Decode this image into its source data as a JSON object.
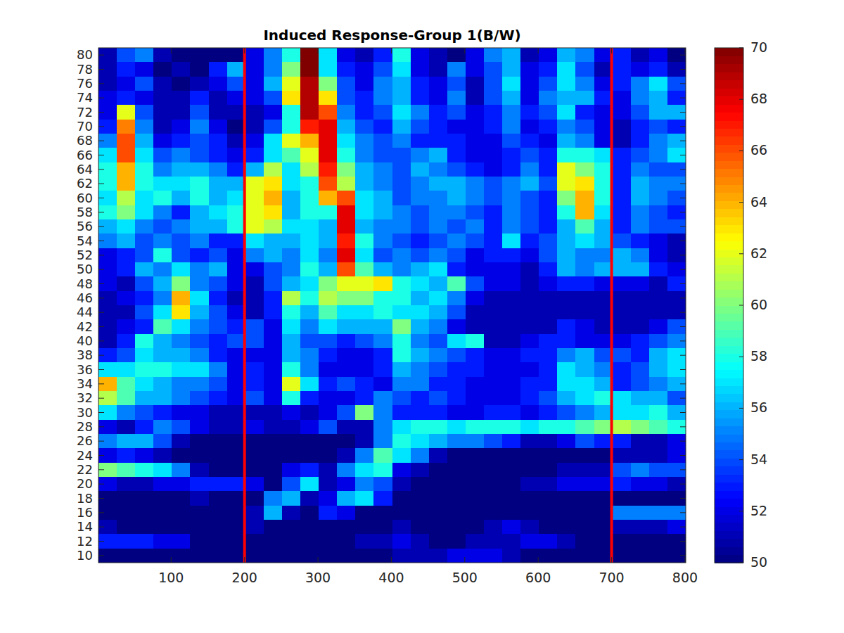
{
  "chart_data": {
    "type": "heatmap",
    "title": "Induced Response-Group 1(B/W)",
    "x_bins": [
      1,
      26,
      51,
      76,
      101,
      126,
      151,
      176,
      201,
      226,
      251,
      276,
      301,
      326,
      351,
      376,
      401,
      426,
      451,
      476,
      501,
      526,
      551,
      576,
      601,
      626,
      651,
      676,
      701,
      726,
      751,
      776,
      801
    ],
    "y_bins": [
      81,
      79,
      77,
      75,
      73,
      71,
      69,
      67,
      65,
      63,
      61,
      59,
      57,
      55,
      53,
      51,
      49,
      47,
      45,
      43,
      41,
      39,
      37,
      35,
      33,
      31,
      29,
      27,
      25,
      23,
      21,
      19,
      17,
      15,
      13,
      11,
      9
    ],
    "values": [
      [
        51,
        54,
        55,
        51,
        50,
        50,
        50,
        50,
        52,
        55,
        58,
        70,
        57,
        52,
        51,
        53,
        58,
        52,
        51,
        50,
        52,
        55,
        56,
        51,
        52,
        56,
        55,
        52,
        53,
        51,
        52,
        50
      ],
      [
        51,
        53,
        52,
        50,
        51,
        50,
        53,
        56,
        52,
        55,
        60,
        70,
        57,
        53,
        52,
        54,
        57,
        52,
        51,
        55,
        52,
        54,
        56,
        52,
        53,
        57,
        54,
        51,
        53,
        52,
        53,
        51
      ],
      [
        51,
        52,
        54,
        51,
        50,
        51,
        52,
        54,
        52,
        56,
        62,
        69,
        60,
        54,
        52,
        55,
        56,
        53,
        52,
        54,
        51,
        54,
        57,
        52,
        54,
        57,
        55,
        52,
        53,
        55,
        57,
        54
      ],
      [
        52,
        53,
        52,
        51,
        51,
        53,
        51,
        52,
        52,
        54,
        63,
        69,
        63,
        54,
        53,
        55,
        56,
        53,
        52,
        55,
        51,
        54,
        56,
        52,
        55,
        56,
        56,
        53,
        52,
        55,
        56,
        53
      ],
      [
        52,
        62,
        54,
        51,
        51,
        54,
        51,
        51,
        51,
        52,
        58,
        69,
        66,
        55,
        53,
        54,
        57,
        55,
        53,
        54,
        52,
        53,
        55,
        53,
        54,
        57,
        53,
        52,
        52,
        54,
        56,
        56
      ],
      [
        53,
        65,
        55,
        51,
        52,
        55,
        52,
        50,
        51,
        54,
        58,
        67,
        68,
        56,
        54,
        53,
        56,
        54,
        53,
        52,
        52,
        53,
        55,
        52,
        53,
        55,
        54,
        52,
        51,
        53,
        54,
        53
      ],
      [
        55,
        66,
        56,
        52,
        53,
        54,
        53,
        51,
        52,
        57,
        62,
        64,
        68,
        57,
        55,
        54,
        55,
        53,
        53,
        53,
        52,
        52,
        54,
        53,
        52,
        56,
        55,
        52,
        51,
        53,
        55,
        56
      ],
      [
        57,
        66,
        57,
        54,
        55,
        54,
        53,
        52,
        53,
        57,
        59,
        62,
        68,
        58,
        55,
        54,
        54,
        55,
        56,
        53,
        52,
        52,
        53,
        54,
        53,
        58,
        58,
        57,
        53,
        54,
        55,
        57
      ],
      [
        58,
        64,
        58,
        55,
        56,
        56,
        55,
        53,
        56,
        61,
        57,
        61,
        67,
        60,
        56,
        55,
        54,
        56,
        55,
        54,
        53,
        52,
        53,
        55,
        53,
        62,
        60,
        58,
        53,
        55,
        54,
        54
      ],
      [
        58,
        64,
        58,
        57,
        57,
        58,
        56,
        56,
        62,
        63,
        57,
        58,
        66,
        61,
        56,
        55,
        54,
        55,
        56,
        56,
        55,
        54,
        55,
        56,
        54,
        62,
        63,
        58,
        53,
        56,
        55,
        55
      ],
      [
        57,
        61,
        57,
        58,
        56,
        58,
        56,
        57,
        62,
        64,
        56,
        58,
        64,
        66,
        57,
        56,
        54,
        55,
        55,
        56,
        55,
        54,
        55,
        54,
        53,
        60,
        64,
        58,
        53,
        56,
        55,
        54
      ],
      [
        58,
        60,
        57,
        55,
        53,
        56,
        57,
        58,
        62,
        63,
        56,
        58,
        58,
        68,
        57,
        56,
        55,
        54,
        55,
        55,
        54,
        53,
        55,
        54,
        53,
        58,
        64,
        57,
        53,
        55,
        54,
        53
      ],
      [
        56,
        57,
        55,
        54,
        55,
        56,
        56,
        58,
        62,
        61,
        57,
        57,
        56,
        68,
        56,
        55,
        55,
        54,
        55,
        54,
        55,
        53,
        55,
        54,
        53,
        56,
        59,
        56,
        53,
        55,
        54,
        54
      ],
      [
        55,
        56,
        54,
        55,
        54,
        55,
        53,
        53,
        57,
        56,
        56,
        57,
        56,
        67,
        58,
        55,
        54,
        53,
        54,
        55,
        54,
        53,
        57,
        53,
        54,
        56,
        57,
        56,
        54,
        53,
        52,
        51
      ],
      [
        52,
        53,
        54,
        58,
        54,
        53,
        54,
        52,
        55,
        56,
        55,
        57,
        55,
        68,
        57,
        54,
        55,
        54,
        55,
        54,
        52,
        53,
        53,
        52,
        54,
        56,
        55,
        55,
        56,
        55,
        52,
        51
      ],
      [
        52,
        53,
        56,
        55,
        57,
        55,
        56,
        52,
        52,
        54,
        55,
        58,
        56,
        66,
        59,
        56,
        55,
        56,
        57,
        53,
        52,
        52,
        52,
        51,
        53,
        56,
        55,
        56,
        56,
        56,
        53,
        52
      ],
      [
        52,
        51,
        54,
        56,
        60,
        55,
        54,
        52,
        51,
        54,
        56,
        57,
        60,
        62,
        62,
        63,
        58,
        57,
        56,
        59,
        54,
        52,
        52,
        51,
        52,
        53,
        53,
        52,
        52,
        52,
        51,
        53
      ],
      [
        51,
        52,
        53,
        55,
        64,
        57,
        53,
        51,
        51,
        53,
        61,
        58,
        61,
        60,
        60,
        58,
        58,
        56,
        57,
        55,
        52,
        51,
        51,
        51,
        51,
        51,
        51,
        51,
        51,
        51,
        51,
        51
      ],
      [
        51,
        51,
        54,
        57,
        63,
        56,
        54,
        52,
        51,
        53,
        58,
        56,
        59,
        57,
        57,
        58,
        57,
        57,
        56,
        54,
        51,
        51,
        51,
        51,
        51,
        51,
        51,
        51,
        51,
        51,
        51,
        51
      ],
      [
        51,
        52,
        53,
        59,
        57,
        55,
        54,
        53,
        54,
        52,
        57,
        55,
        57,
        56,
        56,
        56,
        60,
        56,
        55,
        52,
        51,
        51,
        51,
        51,
        51,
        53,
        52,
        51,
        51,
        51,
        52,
        54
      ],
      [
        51,
        53,
        58,
        56,
        55,
        54,
        53,
        54,
        54,
        52,
        56,
        54,
        54,
        53,
        54,
        55,
        58,
        55,
        54,
        57,
        58,
        51,
        51,
        52,
        53,
        53,
        52,
        52,
        52,
        53,
        54,
        55
      ],
      [
        53,
        54,
        57,
        56,
        56,
        55,
        53,
        52,
        52,
        52,
        56,
        55,
        53,
        52,
        52,
        53,
        58,
        56,
        55,
        54,
        53,
        52,
        52,
        53,
        53,
        55,
        56,
        54,
        54,
        53,
        56,
        57
      ],
      [
        57,
        57,
        58,
        58,
        57,
        57,
        55,
        52,
        53,
        52,
        58,
        55,
        52,
        52,
        52,
        53,
        56,
        55,
        54,
        53,
        53,
        52,
        52,
        52,
        53,
        57,
        56,
        55,
        53,
        54,
        56,
        57
      ],
      [
        64,
        59,
        57,
        56,
        55,
        55,
        54,
        52,
        53,
        52,
        62,
        57,
        53,
        54,
        53,
        52,
        55,
        55,
        53,
        53,
        52,
        52,
        52,
        53,
        53,
        57,
        57,
        56,
        53,
        54,
        55,
        56
      ],
      [
        61,
        59,
        56,
        56,
        55,
        54,
        53,
        52,
        54,
        52,
        58,
        53,
        52,
        52,
        53,
        55,
        54,
        53,
        54,
        53,
        52,
        52,
        52,
        53,
        54,
        56,
        57,
        58,
        57,
        56,
        56,
        54
      ],
      [
        57,
        55,
        54,
        53,
        52,
        52,
        51,
        51,
        51,
        51,
        52,
        51,
        52,
        54,
        60,
        55,
        53,
        53,
        53,
        52,
        52,
        53,
        53,
        52,
        53,
        54,
        55,
        56,
        57,
        57,
        58,
        56
      ],
      [
        52,
        51,
        53,
        55,
        54,
        52,
        51,
        51,
        52,
        51,
        51,
        52,
        54,
        51,
        51,
        55,
        57,
        58,
        58,
        57,
        58,
        58,
        58,
        57,
        58,
        58,
        59,
        60,
        61,
        60,
        59,
        58
      ],
      [
        55,
        56,
        56,
        54,
        51,
        50,
        50,
        50,
        50,
        50,
        50,
        50,
        50,
        50,
        51,
        55,
        58,
        57,
        56,
        55,
        55,
        54,
        53,
        51,
        51,
        52,
        54,
        53,
        53,
        51,
        51,
        52
      ],
      [
        52,
        53,
        52,
        51,
        50,
        50,
        50,
        50,
        50,
        50,
        50,
        50,
        50,
        51,
        55,
        59,
        57,
        55,
        51,
        50,
        50,
        50,
        50,
        50,
        50,
        50,
        50,
        50,
        51,
        51,
        51,
        52
      ],
      [
        60,
        59,
        58,
        57,
        55,
        51,
        50,
        50,
        50,
        50,
        52,
        53,
        51,
        55,
        57,
        58,
        52,
        51,
        50,
        50,
        50,
        50,
        50,
        50,
        50,
        51,
        51,
        51,
        54,
        55,
        54,
        54
      ],
      [
        52,
        51,
        51,
        52,
        52,
        53,
        53,
        53,
        52,
        50,
        54,
        57,
        51,
        52,
        55,
        54,
        51,
        50,
        50,
        50,
        50,
        50,
        50,
        51,
        51,
        52,
        52,
        52,
        53,
        52,
        52,
        51
      ],
      [
        50,
        50,
        50,
        50,
        50,
        51,
        50,
        50,
        50,
        55,
        56,
        51,
        52,
        56,
        57,
        53,
        50,
        50,
        50,
        50,
        50,
        50,
        50,
        50,
        50,
        50,
        50,
        50,
        50,
        50,
        50,
        50
      ],
      [
        50,
        50,
        50,
        50,
        50,
        50,
        50,
        50,
        51,
        56,
        51,
        50,
        53,
        52,
        50,
        50,
        50,
        50,
        50,
        50,
        50,
        50,
        50,
        50,
        50,
        50,
        50,
        50,
        55,
        55,
        55,
        55
      ],
      [
        51,
        50,
        50,
        50,
        50,
        50,
        50,
        50,
        51,
        50,
        50,
        50,
        50,
        50,
        50,
        50,
        51,
        50,
        50,
        50,
        50,
        51,
        52,
        51,
        50,
        50,
        50,
        50,
        51,
        51,
        51,
        52
      ],
      [
        53,
        53,
        53,
        52,
        52,
        50,
        50,
        50,
        50,
        50,
        50,
        50,
        50,
        50,
        51,
        51,
        52,
        51,
        50,
        50,
        51,
        51,
        51,
        52,
        52,
        51,
        50,
        50,
        50,
        50,
        50,
        50
      ],
      [
        50,
        50,
        50,
        50,
        50,
        50,
        50,
        50,
        50,
        50,
        50,
        50,
        50,
        50,
        50,
        50,
        51,
        51,
        51,
        52,
        52,
        52,
        51,
        50,
        50,
        50,
        50,
        50,
        50,
        50,
        50,
        50
      ]
    ],
    "xlim": [
      1,
      801
    ],
    "ylim": [
      9,
      81
    ],
    "xticks": [
      100,
      200,
      300,
      400,
      500,
      600,
      700,
      800
    ],
    "yticks": [
      10,
      12,
      14,
      16,
      18,
      20,
      22,
      24,
      26,
      28,
      30,
      32,
      34,
      36,
      38,
      40,
      42,
      44,
      46,
      48,
      50,
      52,
      54,
      56,
      58,
      60,
      62,
      64,
      66,
      68,
      70,
      72,
      74,
      76,
      78,
      80
    ],
    "colorbar_lim": [
      50,
      70
    ],
    "colorbar_ticks": [
      50,
      52,
      54,
      56,
      58,
      60,
      62,
      64,
      66,
      68,
      70
    ],
    "vlines": {
      "values": [
        200,
        700
      ],
      "color": "#ff0000"
    }
  }
}
